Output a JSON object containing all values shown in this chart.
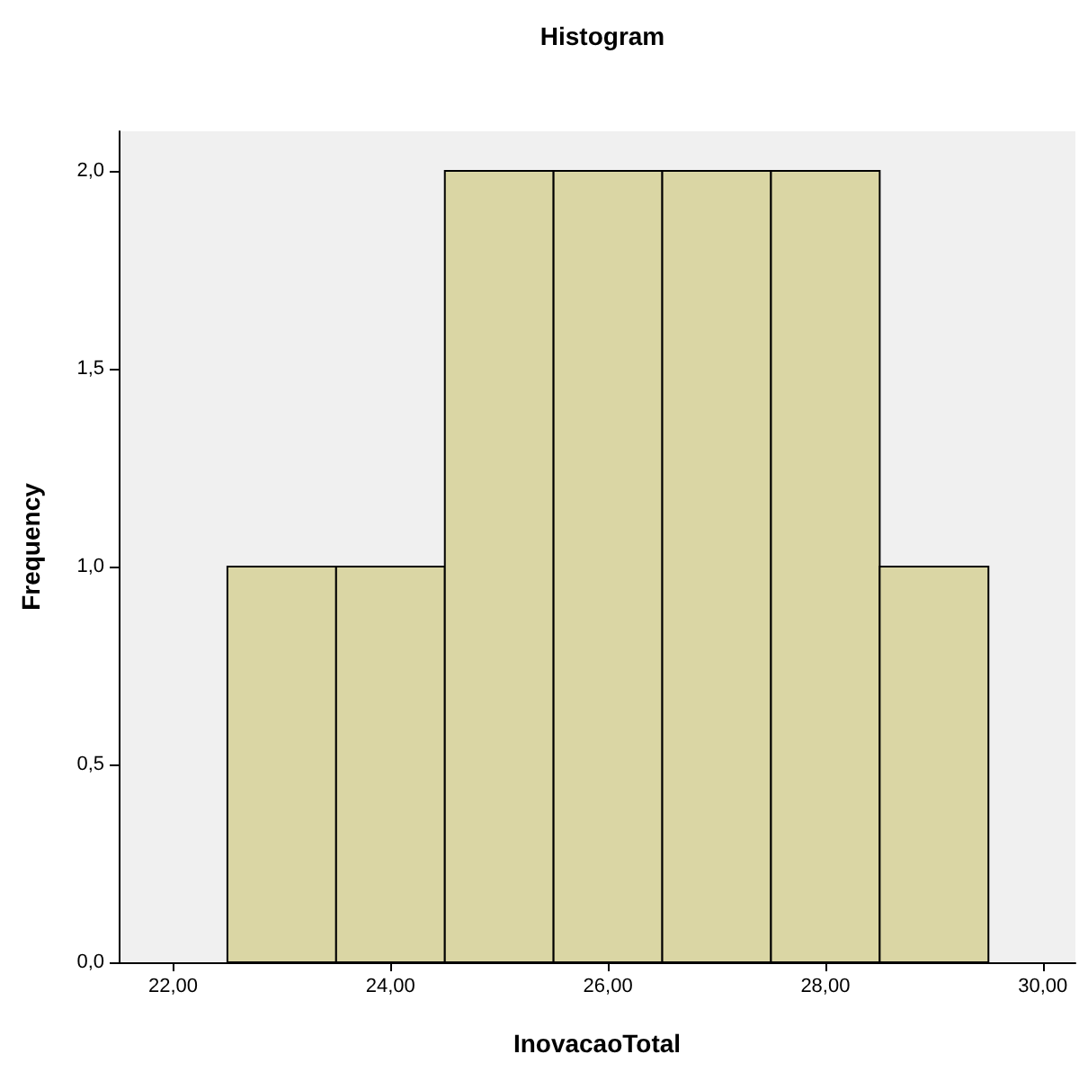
{
  "chart_data": {
    "type": "histogram",
    "title": "Histogram",
    "xlabel": "InovacaoTotal",
    "ylabel": "Frequency",
    "bins": [
      22.5,
      23.5,
      24.5,
      25.5,
      26.5,
      27.5,
      28.5,
      29.5
    ],
    "values": [
      1,
      1,
      2,
      2,
      2,
      2,
      1
    ],
    "color": "#dad6a4",
    "xlim": [
      21.5,
      30.3
    ],
    "xticks": [
      {
        "value": 22,
        "label": "22,00"
      },
      {
        "value": 24,
        "label": "24,00"
      },
      {
        "value": 26,
        "label": "26,00"
      },
      {
        "value": 28,
        "label": "28,00"
      },
      {
        "value": 30,
        "label": "30,00"
      }
    ],
    "ylim": [
      0,
      2.1
    ],
    "yticks": [
      {
        "value": 0,
        "label": "0,0"
      },
      {
        "value": 0.5,
        "label": "0,5"
      },
      {
        "value": 1,
        "label": "1,0"
      },
      {
        "value": 1.5,
        "label": "1,5"
      },
      {
        "value": 2,
        "label": "2,0"
      }
    ]
  }
}
